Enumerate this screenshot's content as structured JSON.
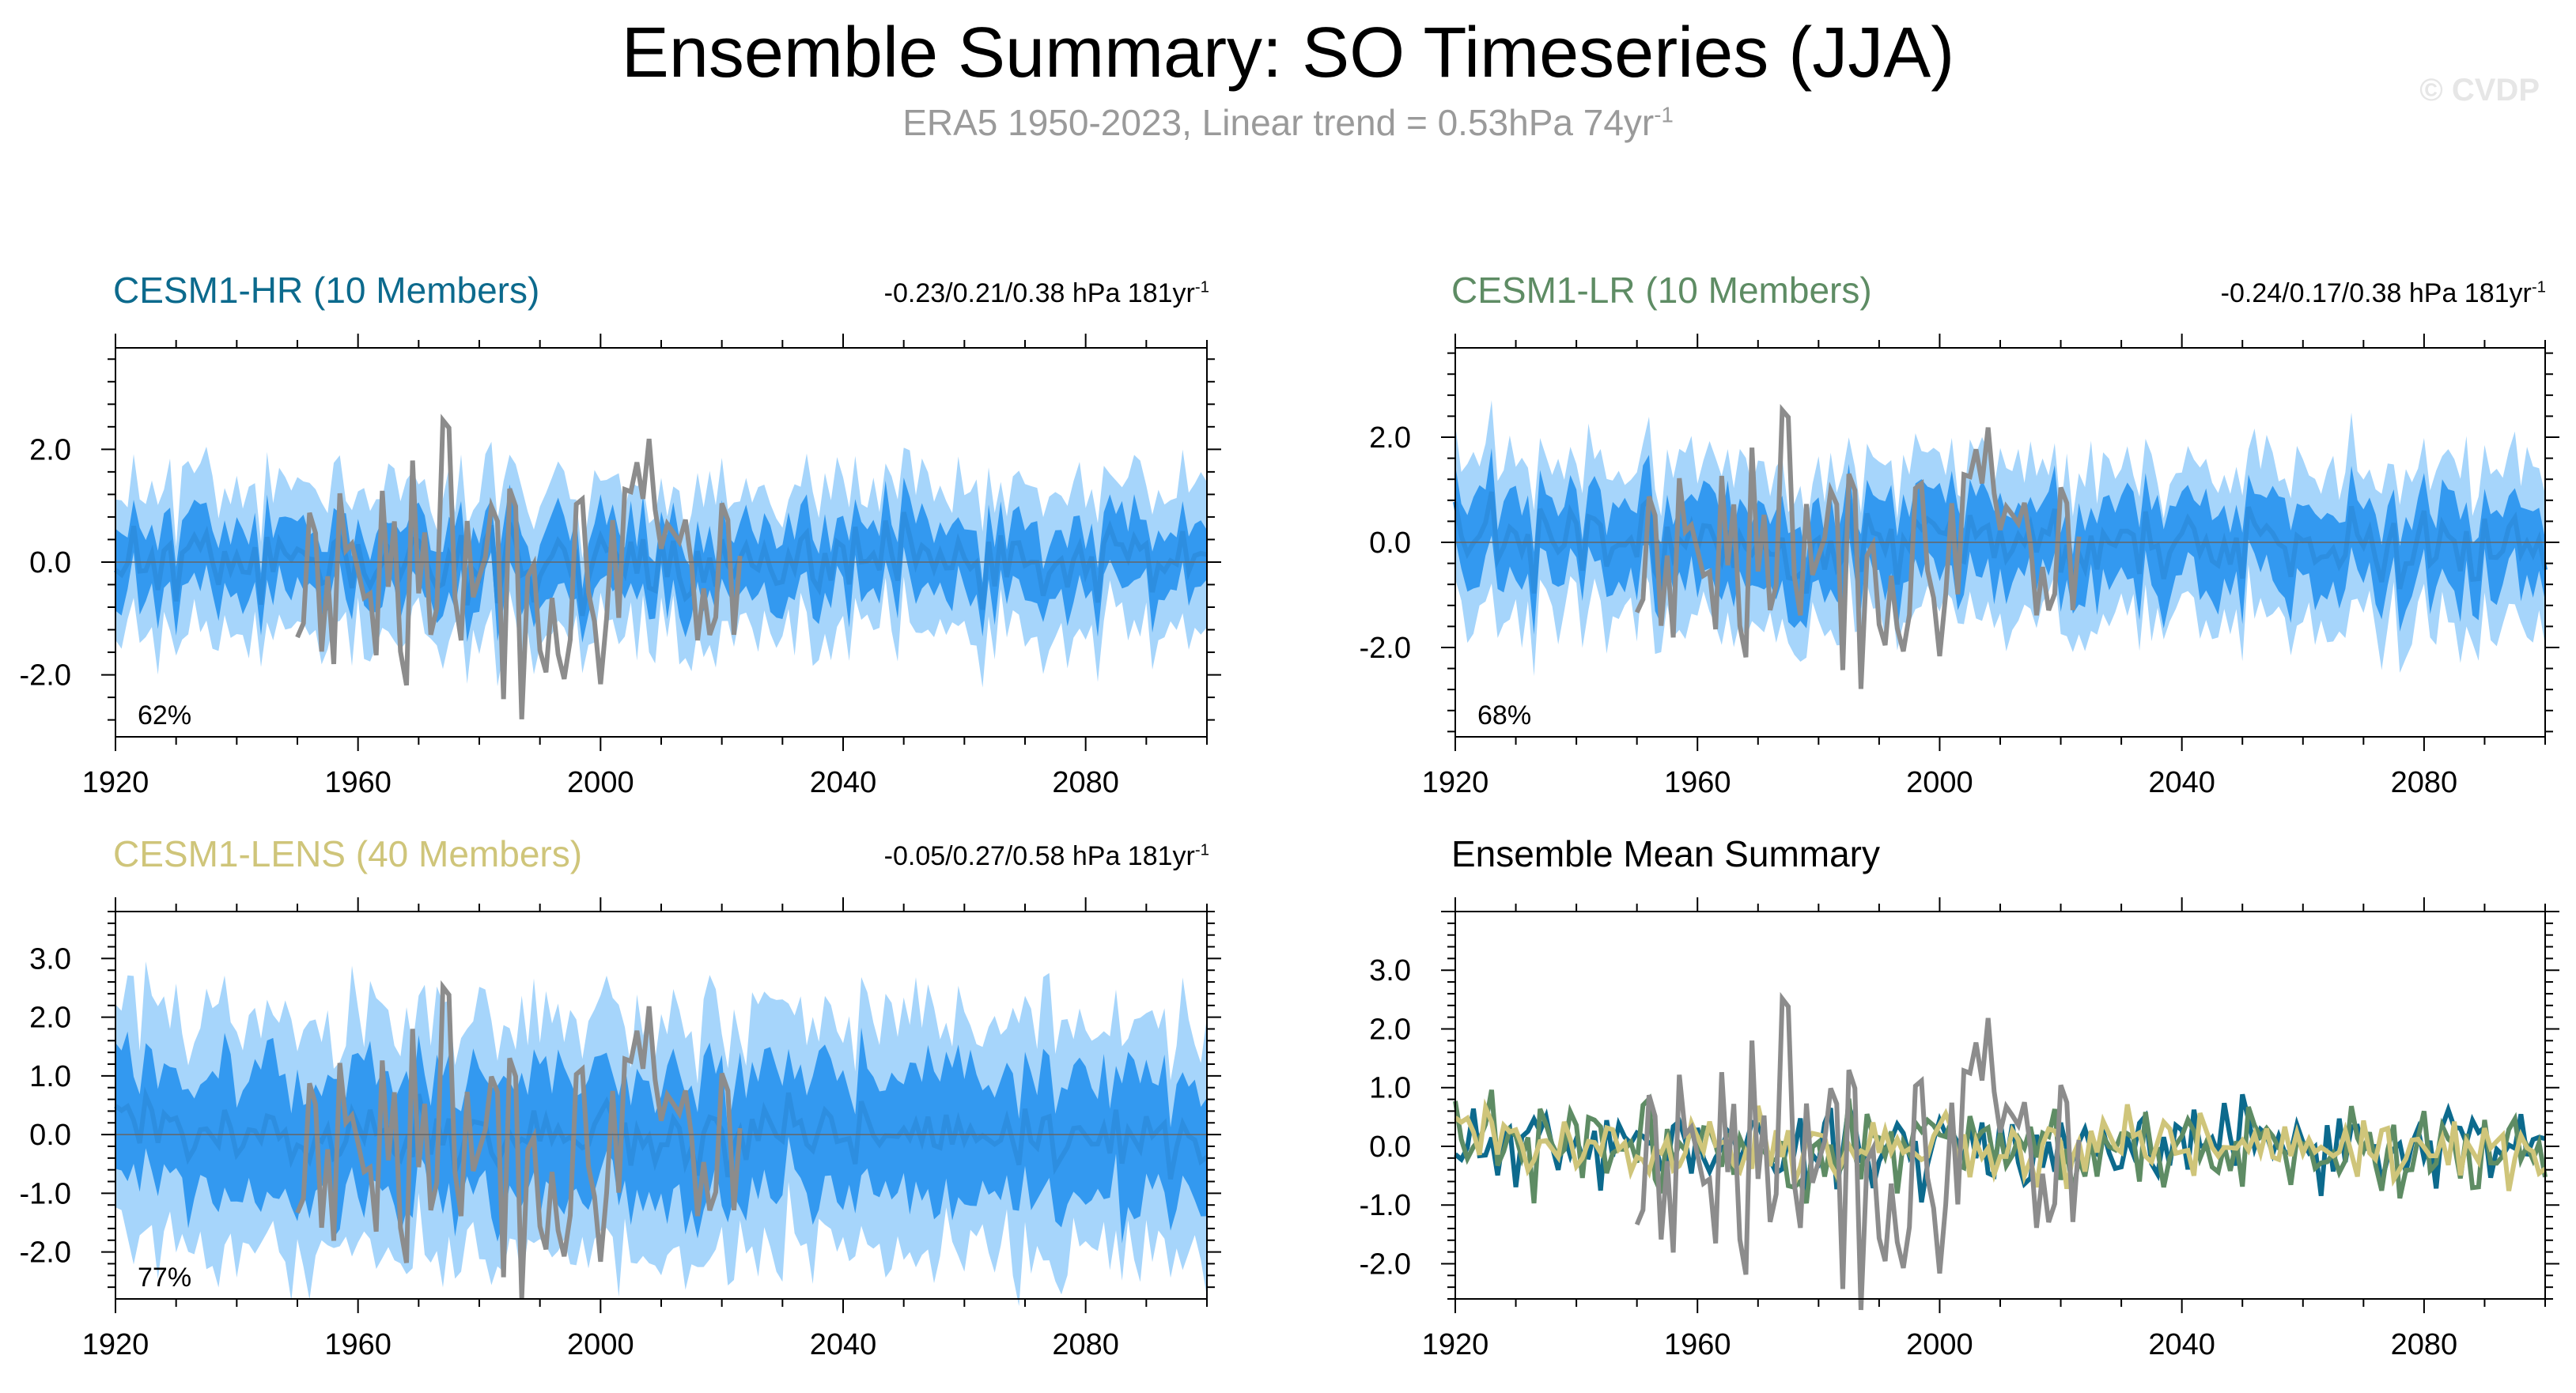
{
  "header": {
    "title": "Ensemble Summary: SO Timeseries (JJA)",
    "subtitle_main": "ERA5 1950-2023, Linear trend = 0.53hPa 74yr",
    "subtitle_exp": "-1",
    "watermark": "© CVDP"
  },
  "colors": {
    "obs": "#8c8c8c",
    "band_outer": "#a6d5fb",
    "band_inner": "#3399f0",
    "ens_mean": "#2d8ee0",
    "cesm1_hr": "#0c6a8d",
    "cesm1_lr": "#5e8c64",
    "cesm1_lens": "#cfc57a"
  },
  "chart_data": [
    {
      "id": "hr",
      "type": "area",
      "title": "CESM1-HR (10 Members)",
      "title_color": "#0c6a8d",
      "trend_text": "-0.23/0.21/0.38 hPa 181yr",
      "trend_exp": "-1",
      "percent": "62%",
      "xlim": [
        1920,
        2100
      ],
      "ylim": [
        -3.1,
        3.8
      ],
      "xticks": [
        1920,
        1960,
        2000,
        2040,
        2080
      ],
      "xtick_labels": [
        "1920",
        "1960",
        "2000",
        "2040",
        "2080"
      ],
      "yticks": [
        -2.0,
        0.0,
        2.0
      ],
      "ytick_labels": [
        "-2.0",
        "0.0",
        "2.0"
      ],
      "series": [
        {
          "name": "ensemble mean",
          "seed": 11,
          "start": 1920,
          "end": 2100,
          "amp": 0.35,
          "inner": 0.6,
          "outer": 1.25
        },
        {
          "name": "ERA5",
          "seed": 7,
          "start": 1950,
          "end": 2023,
          "amp": 1.15
        }
      ]
    },
    {
      "id": "lr",
      "type": "area",
      "title": "CESM1-LR (10 Members)",
      "title_color": "#5e8c64",
      "trend_text": "-0.24/0.17/0.38 hPa 181yr",
      "trend_exp": "-1",
      "percent": "68%",
      "xlim": [
        1920,
        2100
      ],
      "ylim": [
        -3.7,
        3.7
      ],
      "xticks": [
        1920,
        1960,
        2000,
        2040,
        2080
      ],
      "xtick_labels": [
        "1920",
        "1960",
        "2000",
        "2040",
        "2080"
      ],
      "yticks": [
        -2.0,
        0.0,
        2.0
      ],
      "ytick_labels": [
        "-2.0",
        "0.0",
        "2.0"
      ],
      "series": [
        {
          "name": "ensemble mean",
          "seed": 23,
          "start": 1920,
          "end": 2100,
          "amp": 0.4,
          "inner": 0.75,
          "outer": 1.45
        },
        {
          "name": "ERA5",
          "seed": 7,
          "start": 1950,
          "end": 2023,
          "amp": 1.15
        }
      ]
    },
    {
      "id": "lens",
      "type": "area",
      "title": "CESM1-LENS (40 Members)",
      "title_color": "#cfc57a",
      "trend_text": "-0.05/0.27/0.58 hPa 181yr",
      "trend_exp": "-1",
      "percent": "77%",
      "xlim": [
        1920,
        2100
      ],
      "ylim": [
        -2.8,
        3.8
      ],
      "xticks": [
        1920,
        1960,
        2000,
        2040,
        2080
      ],
      "xtick_labels": [
        "1920",
        "1960",
        "2000",
        "2040",
        "2080"
      ],
      "yticks": [
        -2.0,
        -1.0,
        0.0,
        1.0,
        2.0,
        3.0
      ],
      "ytick_labels": [
        "-2.0",
        "-1.0",
        "0.0",
        "1.0",
        "2.0",
        "3.0"
      ],
      "series": [
        {
          "name": "ensemble mean",
          "seed": 37,
          "start": 1920,
          "end": 2100,
          "amp": 0.3,
          "inner": 1.05,
          "outer": 2.0
        },
        {
          "name": "ERA5",
          "seed": 7,
          "start": 1950,
          "end": 2023,
          "amp": 1.15
        }
      ]
    },
    {
      "id": "summary",
      "type": "line",
      "title": "Ensemble Mean Summary",
      "title_color": "#000000",
      "trend_text": "",
      "trend_exp": "",
      "percent": "",
      "xlim": [
        1920,
        2100
      ],
      "ylim": [
        -2.6,
        4.0
      ],
      "xticks": [
        1920,
        1960,
        2000,
        2040,
        2080
      ],
      "xtick_labels": [
        "1920",
        "1960",
        "2000",
        "2040",
        "2080"
      ],
      "yticks": [
        -2.0,
        -1.0,
        0.0,
        1.0,
        2.0,
        3.0
      ],
      "ytick_labels": [
        "-2.0",
        "-1.0",
        "0.0",
        "1.0",
        "2.0",
        "3.0"
      ],
      "series": [
        {
          "name": "ERA5",
          "seed": 7,
          "start": 1950,
          "end": 2023,
          "amp": 1.15,
          "color": "#8c8c8c"
        },
        {
          "name": "CESM1-HR",
          "seed": 11,
          "start": 1920,
          "end": 2100,
          "amp": 0.35,
          "color": "#0c6a8d"
        },
        {
          "name": "CESM1-LR",
          "seed": 23,
          "start": 1920,
          "end": 2100,
          "amp": 0.4,
          "color": "#5e8c64"
        },
        {
          "name": "CESM1-LENS",
          "seed": 37,
          "start": 1920,
          "end": 2100,
          "amp": 0.3,
          "color": "#cfc57a"
        }
      ]
    }
  ]
}
